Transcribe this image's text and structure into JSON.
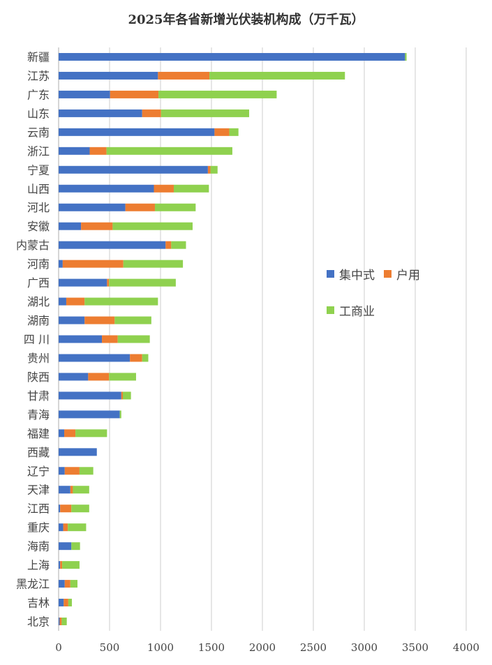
{
  "chart_data": {
    "type": "bar",
    "orientation": "horizontal",
    "stacked": true,
    "title": "2025年各省新增光伏装机构成（万千瓦）",
    "xlim": [
      0,
      4000
    ],
    "xticks": [
      "0",
      "500",
      "1000",
      "1500",
      "2000",
      "2500",
      "3000",
      "3500",
      "4000"
    ],
    "grid": true,
    "legend_position": "right-center",
    "categories": [
      "新疆",
      "江苏",
      "广东",
      "山东",
      "云南",
      "浙江",
      "宁夏",
      "山西",
      "河北",
      "安徽",
      "内蒙古",
      "河南",
      "广西",
      "湖北",
      "湖南",
      "四 川",
      "贵州",
      "陕西",
      "甘肃",
      "青海",
      "福建",
      "西藏",
      "辽宁",
      "天津",
      "江西",
      "重庆",
      "海南",
      "上海",
      "黑龙江",
      "吉林",
      "北京"
    ],
    "series": [
      {
        "name": "集中式",
        "color": "#4472C4",
        "values": [
          3400,
          975,
          505,
          820,
          1530,
          305,
          1465,
          935,
          655,
          220,
          1050,
          40,
          475,
          75,
          255,
          425,
          700,
          290,
          615,
          600,
          55,
          375,
          60,
          115,
          15,
          45,
          125,
          15,
          60,
          50,
          10
        ]
      },
      {
        "name": "户用",
        "color": "#ED7D31",
        "values": [
          0,
          505,
          475,
          185,
          145,
          165,
          25,
          195,
          290,
          310,
          55,
          595,
          20,
          180,
          295,
          155,
          120,
          205,
          15,
          0,
          110,
          0,
          145,
          25,
          110,
          45,
          0,
          20,
          55,
          45,
          20
        ]
      },
      {
        "name": "工商业",
        "color": "#8FD14F",
        "values": [
          15,
          1330,
          1160,
          865,
          90,
          1235,
          70,
          345,
          400,
          785,
          145,
          585,
          655,
          720,
          360,
          315,
          60,
          265,
          80,
          15,
          310,
          0,
          135,
          160,
          175,
          180,
          85,
          170,
          70,
          35,
          50
        ]
      }
    ]
  }
}
